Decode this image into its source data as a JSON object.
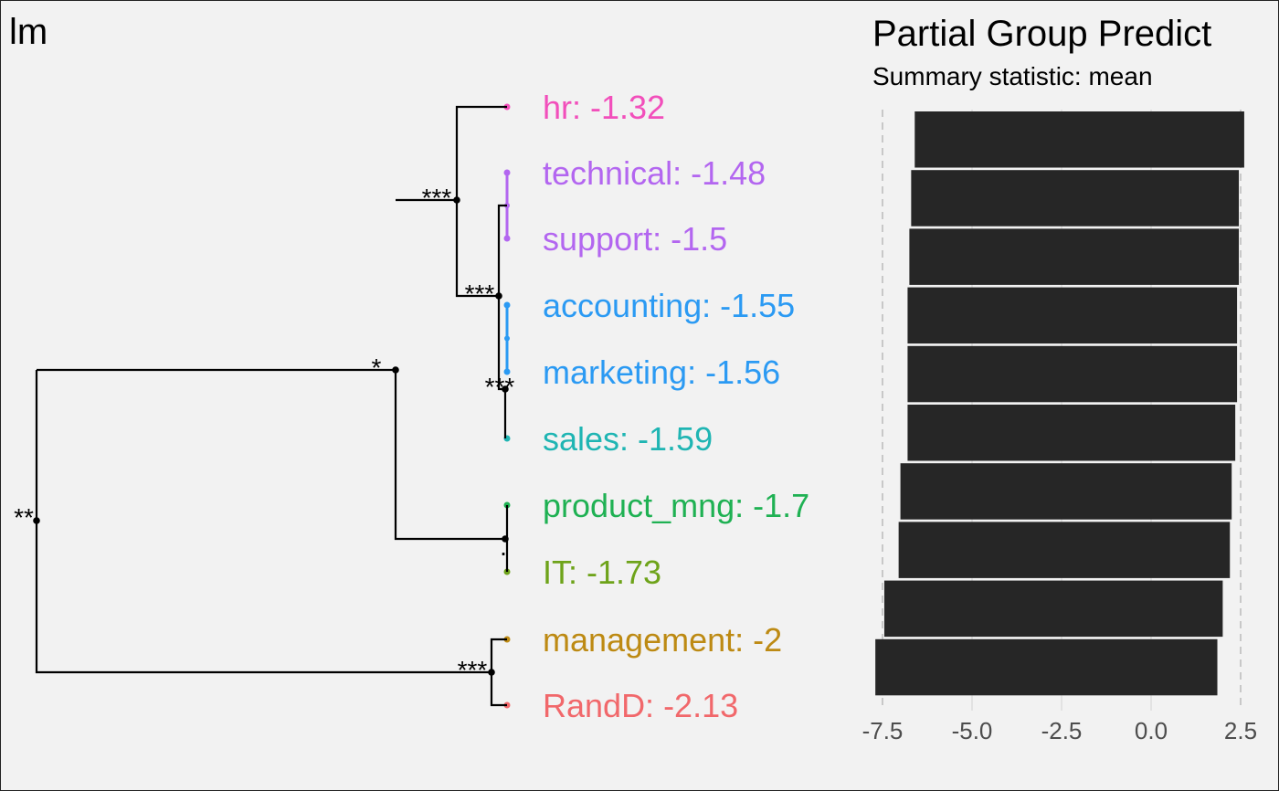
{
  "chart_data": [
    {
      "type": "dendrogram",
      "title": "lm",
      "leaves": [
        {
          "label": "hr: -1.32",
          "group": "hr",
          "value": -1.32,
          "color": "#f24fbb"
        },
        {
          "label": "technical: -1.48",
          "group": "technical",
          "value": -1.48,
          "color": "#b366f0"
        },
        {
          "label": "support: -1.5",
          "group": "support",
          "value": -1.5,
          "color": "#b366f0"
        },
        {
          "label": "accounting: -1.55",
          "group": "accounting",
          "value": -1.55,
          "color": "#2b9af3"
        },
        {
          "label": "marketing: -1.56",
          "group": "marketing",
          "value": -1.56,
          "color": "#2b9af3"
        },
        {
          "label": "sales: -1.59",
          "group": "sales",
          "value": -1.59,
          "color": "#1fb5b3"
        },
        {
          "label": "product_mng: -1.7",
          "group": "product_mng",
          "value": -1.7,
          "color": "#1fb153"
        },
        {
          "label": "IT: -1.73",
          "group": "IT",
          "value": -1.73,
          "color": "#6ea31a"
        },
        {
          "label": "management: -2",
          "group": "management",
          "value": -2.0,
          "color": "#bd8a13"
        },
        {
          "label": "RandD: -2.13",
          "group": "RandD",
          "value": -2.13,
          "color": "#f1686b"
        }
      ],
      "significance_labels": [
        "***",
        "***",
        "***",
        "*",
        ".",
        "***",
        "**"
      ]
    },
    {
      "type": "bar",
      "orientation": "horizontal",
      "title": "Partial Group Predict",
      "subtitle": "Summary statistic: mean",
      "categories": [
        "hr",
        "technical",
        "support",
        "accounting",
        "marketing",
        "sales",
        "product_mng",
        "IT",
        "management",
        "RandD"
      ],
      "series": [
        {
          "low": [
            -6.6,
            -6.7,
            -6.75,
            -6.8,
            -6.8,
            -6.8,
            -7.0,
            -7.05,
            -7.45,
            -7.7
          ],
          "high": [
            2.6,
            2.45,
            2.45,
            2.4,
            2.4,
            2.35,
            2.25,
            2.2,
            2.0,
            1.85
          ]
        }
      ],
      "xlim": [
        -7.5,
        2.5
      ],
      "xticks": [
        "-7.5",
        "-5.0",
        "-2.5",
        "0.0",
        "2.5"
      ],
      "bar_color": "#262626",
      "grid": true
    }
  ]
}
